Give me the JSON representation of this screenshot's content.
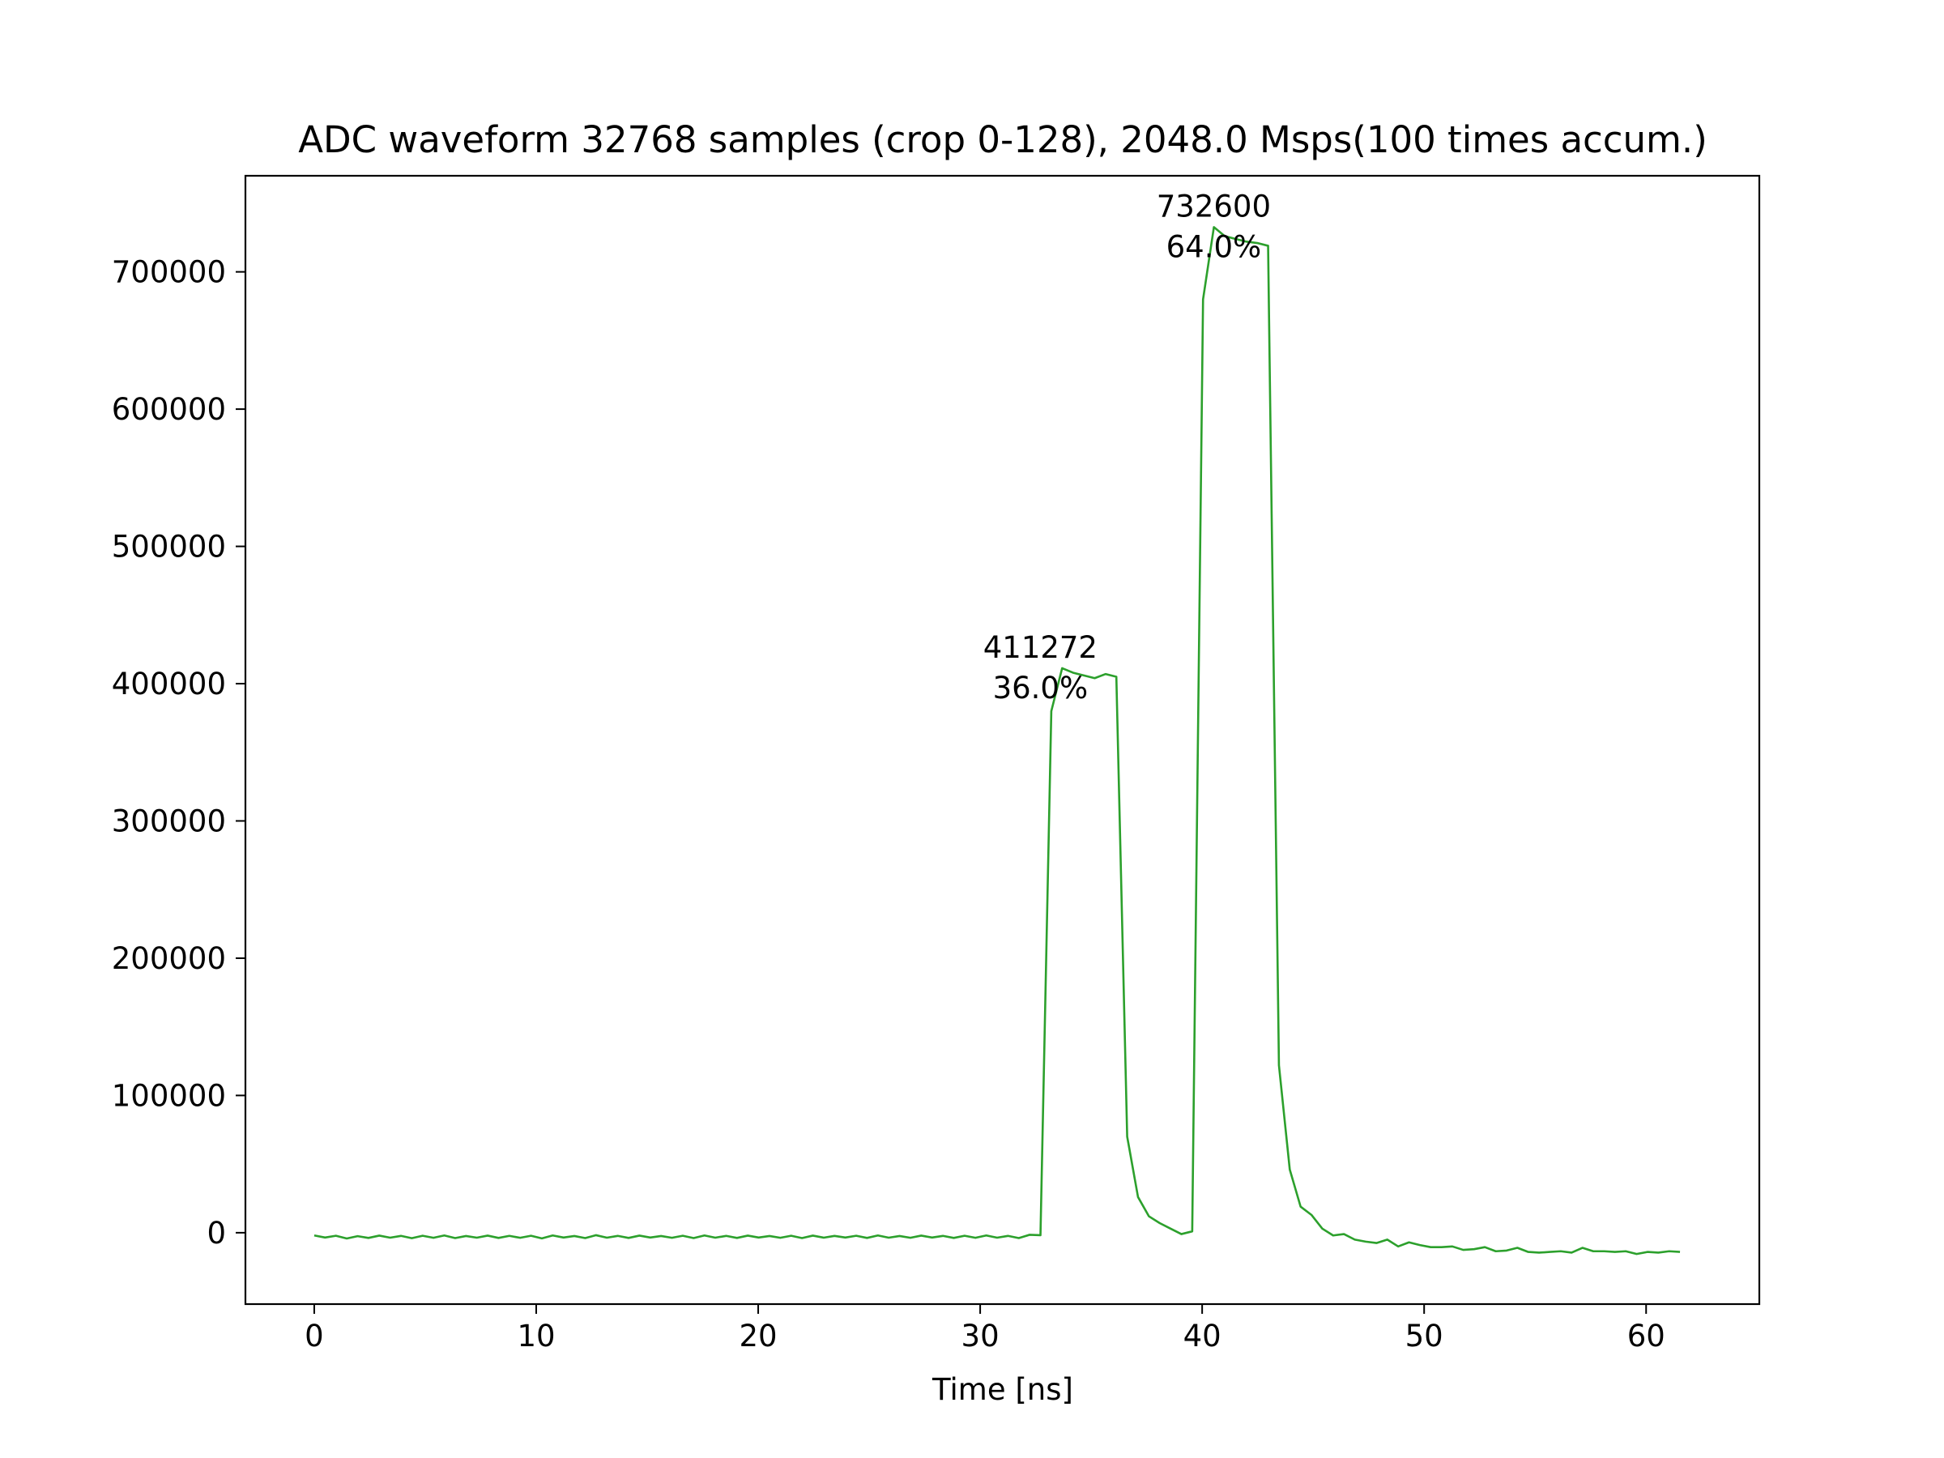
{
  "chart_data": {
    "type": "line",
    "title": "ADC waveform 32768 samples (crop 0-128), 2048.0 Msps(100 times accum.)",
    "xlabel": "Time [ns]",
    "ylabel": "",
    "xlim": [
      -3.1,
      65.1
    ],
    "ylim": [
      -52000,
      770000
    ],
    "x_ticks": [
      0,
      10,
      20,
      30,
      40,
      50,
      60
    ],
    "x_tick_labels": [
      "0",
      "10",
      "20",
      "30",
      "40",
      "50",
      "60"
    ],
    "y_ticks": [
      0,
      100000,
      200000,
      300000,
      400000,
      500000,
      600000,
      700000
    ],
    "y_tick_labels": [
      "0",
      "100000",
      "200000",
      "300000",
      "400000",
      "500000",
      "600000",
      "700000"
    ],
    "grid": false,
    "legend": "none",
    "x_sample_step_ns": 0.4883,
    "series": [
      {
        "color": "#2ca02c",
        "values": [
          -2000,
          -3500,
          -2200,
          -4200,
          -2500,
          -3800,
          -2100,
          -3600,
          -2300,
          -4000,
          -2200,
          -3700,
          -2000,
          -3900,
          -2400,
          -3600,
          -2100,
          -3800,
          -2300,
          -3700,
          -2200,
          -4100,
          -2000,
          -3500,
          -2400,
          -3900,
          -1800,
          -3600,
          -2300,
          -3800,
          -2100,
          -3500,
          -2400,
          -3700,
          -2200,
          -3900,
          -2000,
          -3600,
          -2300,
          -3800,
          -2100,
          -3500,
          -2400,
          -3700,
          -2200,
          -3900,
          -2100,
          -3600,
          -2300,
          -3500,
          -2200,
          -3800,
          -2000,
          -3600,
          -2400,
          -3700,
          -2100,
          -3500,
          -2300,
          -3800,
          -2200,
          -3700,
          -2000,
          -3600,
          -2300,
          -3900,
          -1500,
          -1800,
          380000,
          411272,
          408000,
          406000,
          404000,
          407000,
          405000,
          70000,
          26000,
          12000,
          7000,
          3000,
          -1000,
          1000,
          680000,
          732600,
          726000,
          724000,
          722000,
          721000,
          719000,
          122000,
          46000,
          19000,
          13000,
          3000,
          -2000,
          -1000,
          -5000,
          -6500,
          -7500,
          -5000,
          -10000,
          -7000,
          -9000,
          -10500,
          -10500,
          -10000,
          -12500,
          -12000,
          -10500,
          -13500,
          -13000,
          -11000,
          -14000,
          -14500,
          -14000,
          -13500,
          -14500,
          -11000,
          -13500,
          -13500,
          -14000,
          -13500,
          -15500,
          -14000,
          -14500,
          -13500,
          -14000
        ]
      }
    ],
    "annotations": [
      {
        "x": 32.71,
        "y": 411272,
        "value": "411272",
        "percent": "36.0%"
      },
      {
        "x": 40.52,
        "y": 732600,
        "value": "732600",
        "percent": "64.0%"
      }
    ]
  }
}
